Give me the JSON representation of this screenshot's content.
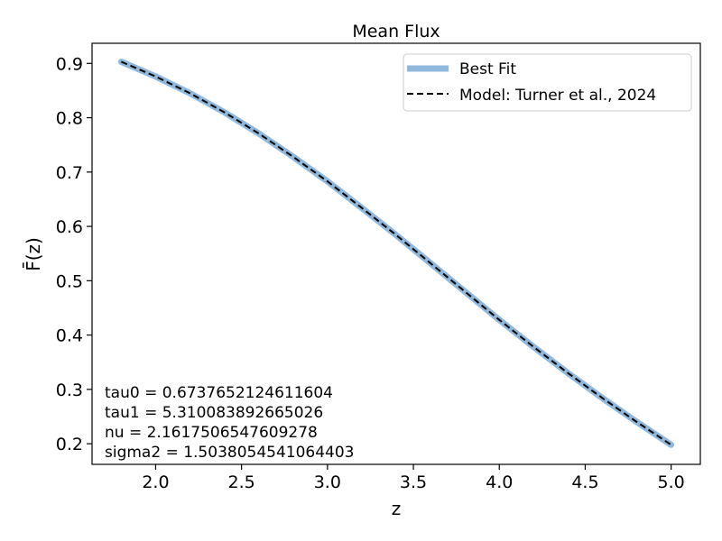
{
  "chart_data": {
    "type": "line",
    "title": "Mean Flux",
    "xlabel": "z",
    "ylabel": "F̄(z)",
    "xlim": [
      1.63,
      5.17
    ],
    "ylim": [
      0.162,
      0.937
    ],
    "xticks": [
      2.0,
      2.5,
      3.0,
      3.5,
      4.0,
      4.5,
      5.0
    ],
    "xtick_labels": [
      "2.0",
      "2.5",
      "3.0",
      "3.5",
      "4.0",
      "4.5",
      "5.0"
    ],
    "yticks": [
      0.2,
      0.3,
      0.4,
      0.5,
      0.6,
      0.7,
      0.8,
      0.9
    ],
    "ytick_labels": [
      "0.2",
      "0.3",
      "0.4",
      "0.5",
      "0.6",
      "0.7",
      "0.8",
      "0.9"
    ],
    "grid": false,
    "legend_position": "top-right",
    "x": [
      1.8,
      2.0,
      2.2,
      2.4,
      2.6,
      2.8,
      3.0,
      3.2,
      3.4,
      3.6,
      3.8,
      4.0,
      4.2,
      4.4,
      4.6,
      4.8,
      5.0
    ],
    "series": [
      {
        "name": "Best Fit",
        "style": "solid",
        "color": "#8fb8dc",
        "values": [
          0.903,
          0.876,
          0.845,
          0.81,
          0.771,
          0.728,
          0.683,
          0.634,
          0.584,
          0.532,
          0.48,
          0.428,
          0.378,
          0.33,
          0.284,
          0.24,
          0.198
        ]
      },
      {
        "name": "Model: Turner et al., 2024",
        "style": "dashed",
        "color": "#000000",
        "values": [
          0.903,
          0.876,
          0.845,
          0.81,
          0.771,
          0.728,
          0.683,
          0.634,
          0.584,
          0.532,
          0.48,
          0.428,
          0.378,
          0.33,
          0.284,
          0.24,
          0.198
        ]
      }
    ],
    "annotations": [
      "tau0 = 0.6737652124611604",
      "tau1 = 5.310083892665026",
      "nu = 2.1617506547609278",
      "sigma2 = 1.5038054541064403"
    ]
  }
}
